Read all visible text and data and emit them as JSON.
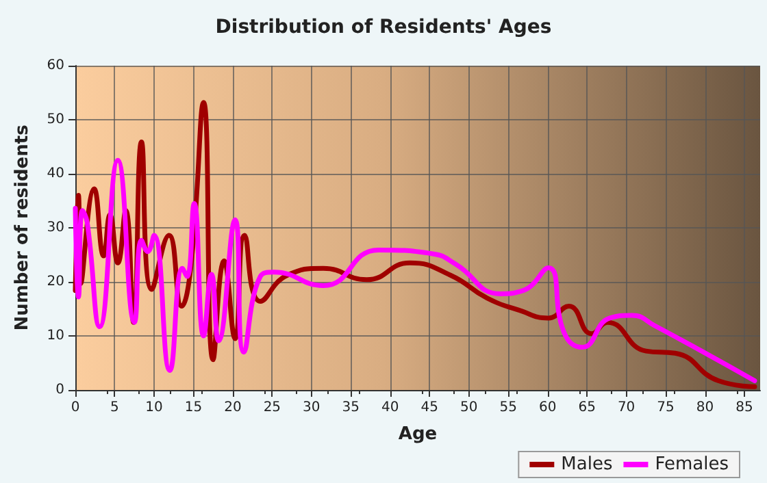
{
  "chart_data": {
    "type": "line",
    "title": "Distribution of Residents' Ages",
    "xlabel": "Age",
    "ylabel": "Number of residents",
    "xlim": [
      0,
      87
    ],
    "xticks": [
      0,
      5,
      10,
      15,
      20,
      25,
      30,
      35,
      40,
      45,
      50,
      55,
      60,
      65,
      70,
      75,
      80,
      85
    ],
    "ylim": [
      0,
      60
    ],
    "yticks": [
      0,
      10,
      20,
      30,
      40,
      50,
      60
    ],
    "grid": true,
    "legend": "bottom right",
    "marker": "none",
    "line_style": "solid",
    "series": [
      {
        "name": "Males",
        "color": "#a00000",
        "x": [
          0,
          0.4,
          0.7,
          2.4,
          3.6,
          4.4,
          5.4,
          6.4,
          7.4,
          8.4,
          9.7,
          11.9,
          13.5,
          14.7,
          16.3,
          17.5,
          18.9,
          20.3,
          21.5,
          23.5,
          26.9,
          31.5,
          37,
          42.5,
          47.7,
          52.3,
          56.3,
          60.1,
          62.7,
          65.6,
          67.6,
          72.5,
          76.2,
          81.7,
          86.3
        ],
        "values": [
          18.4,
          36,
          19.7,
          37.2,
          24.8,
          32.4,
          23.5,
          33.2,
          12.5,
          45.9,
          18.6,
          28.6,
          15.5,
          23.1,
          53.2,
          5.6,
          23.9,
          9.5,
          28.6,
          16.4,
          21.2,
          22.5,
          20.4,
          23.5,
          21.2,
          17,
          14.8,
          13.3,
          15.5,
          10.4,
          12.5,
          7.2,
          6.8,
          1.7,
          0.6
        ]
      },
      {
        "name": "Females",
        "color": "#ff00ff",
        "x": [
          0,
          0.4,
          0.9,
          1.5,
          3.1,
          5.4,
          7.5,
          8.4,
          9.2,
          10,
          12,
          13.6,
          14.2,
          15.1,
          16.3,
          17.3,
          18.2,
          20.3,
          21.4,
          23.5,
          25.2,
          31.5,
          38.5,
          45.4,
          48.3,
          54,
          56.9,
          60.1,
          62.1,
          64.4,
          67.9,
          70.7,
          73.6,
          86.3
        ],
        "values": [
          33.6,
          17.2,
          33.2,
          31,
          11.7,
          42.5,
          12.5,
          27.7,
          25.6,
          28.6,
          3.6,
          22.5,
          21,
          34.5,
          10,
          21.4,
          9.1,
          31.5,
          7,
          21,
          21.8,
          19.3,
          25.9,
          25.2,
          23.3,
          17.8,
          18.4,
          22.6,
          10.6,
          7.9,
          13.3,
          13.8,
          11.9,
          1.7
        ]
      }
    ]
  }
}
